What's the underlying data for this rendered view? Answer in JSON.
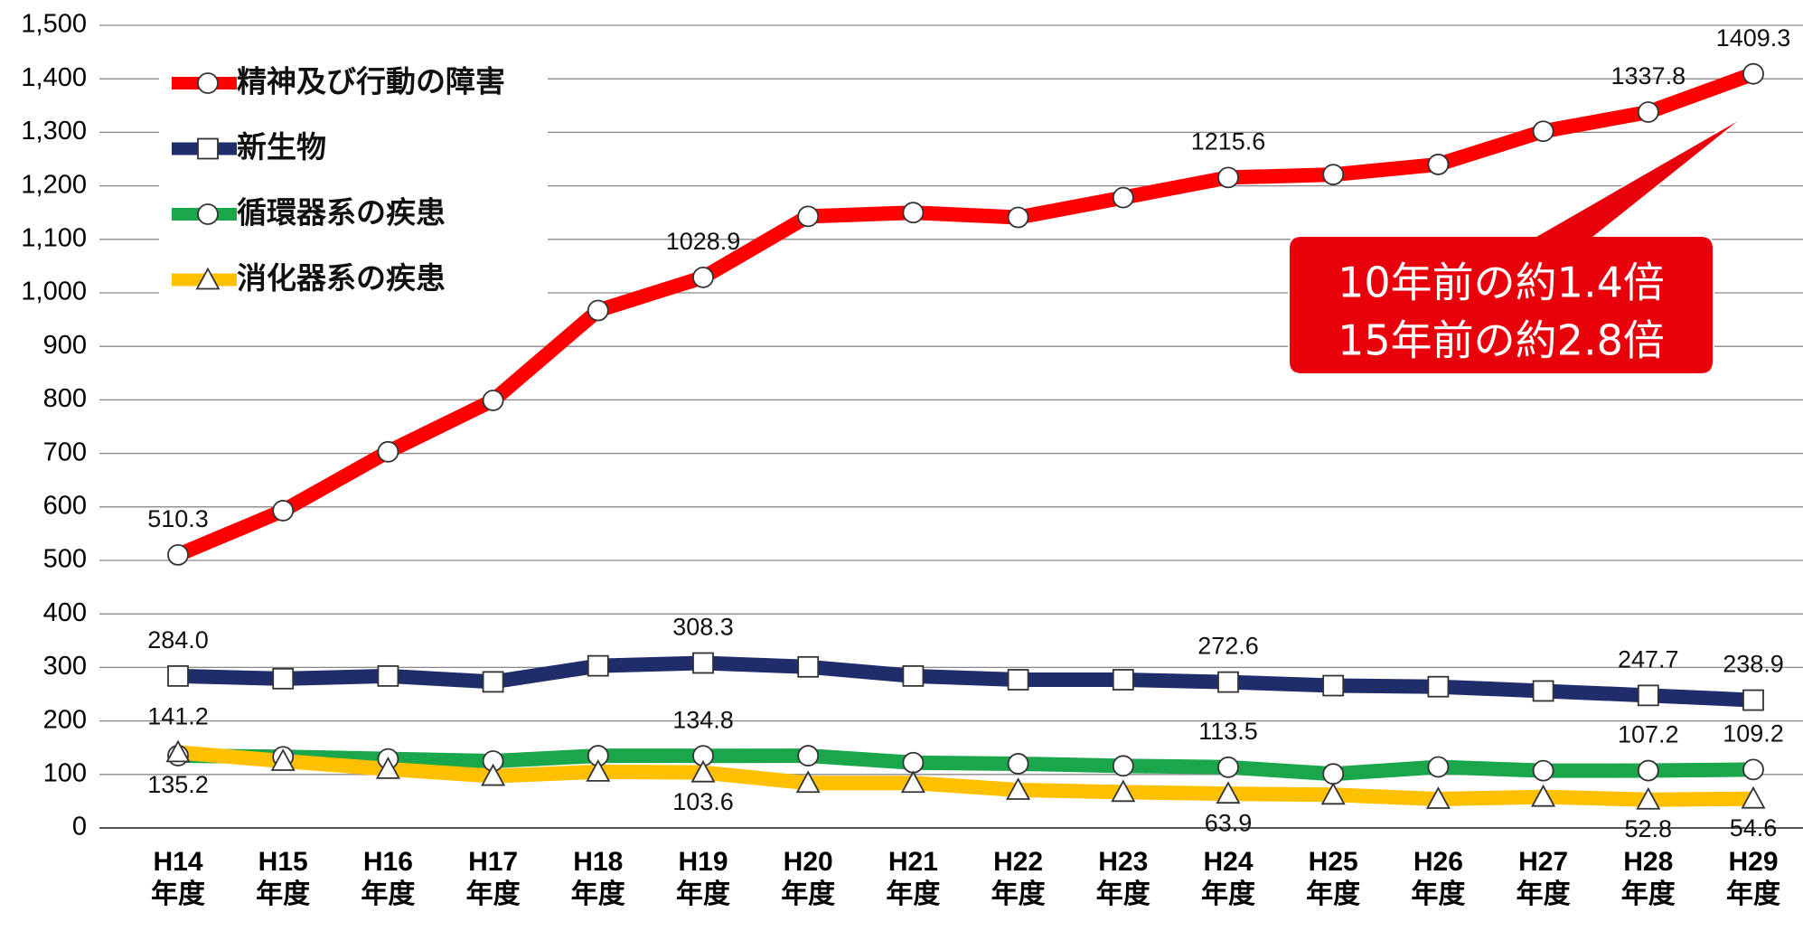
{
  "chart_data": {
    "type": "line",
    "categories": [
      "H14\n年度",
      "H15\n年度",
      "H16\n年度",
      "H17\n年度",
      "H18\n年度",
      "H19\n年度",
      "H20\n年度",
      "H21\n年度",
      "H22\n年度",
      "H23\n年度",
      "H24\n年度",
      "H25\n年度",
      "H26\n年度",
      "H27\n年度",
      "H28\n年度",
      "H29\n年度"
    ],
    "series": [
      {
        "name": "精神及び行動の障害",
        "color": "#ff0000",
        "marker": "circle",
        "values": [
          510.3,
          593,
          703,
          799,
          967,
          1028.9,
          1143,
          1150,
          1141,
          1178,
          1215.6,
          1221,
          1240,
          1302,
          1337.8,
          1409.3
        ],
        "value_labels": [
          "510.3",
          null,
          null,
          null,
          null,
          "1028.9",
          null,
          null,
          null,
          null,
          "1215.6",
          null,
          null,
          null,
          "1337.8",
          "1409.3"
        ]
      },
      {
        "name": "新生物",
        "color": "#1f2d6b",
        "marker": "square",
        "values": [
          284.0,
          279,
          284,
          273,
          303,
          308.3,
          301,
          284,
          277,
          277,
          272.6,
          266,
          264,
          256,
          247.7,
          238.9
        ],
        "value_labels": [
          "284.0",
          null,
          null,
          null,
          null,
          "308.3",
          null,
          null,
          null,
          null,
          "272.6",
          null,
          null,
          null,
          "247.7",
          "238.9"
        ]
      },
      {
        "name": "循環器系の疾患",
        "color": "#1aa64a",
        "marker": "circle",
        "values": [
          135.2,
          133,
          129,
          125,
          135,
          134.8,
          135,
          122,
          120,
          116,
          113.5,
          101,
          114,
          107,
          107.2,
          109.2
        ],
        "value_labels": [
          "135.2",
          null,
          null,
          null,
          null,
          "134.8",
          null,
          null,
          null,
          null,
          "113.5",
          null,
          null,
          null,
          "107.2",
          "109.2"
        ]
      },
      {
        "name": "消化器系の疾患",
        "color": "#ffc000",
        "marker": "triangle",
        "values": [
          141.2,
          125,
          110,
          97,
          105,
          103.6,
          84,
          84,
          71,
          67,
          63.9,
          62,
          54,
          58,
          52.8,
          54.6
        ],
        "value_labels": [
          "141.2",
          null,
          null,
          null,
          null,
          "103.6",
          null,
          null,
          null,
          null,
          "63.9",
          null,
          null,
          null,
          "52.8",
          "54.6"
        ]
      }
    ],
    "ylim": [
      0,
      1500
    ],
    "yticks": [
      0,
      100,
      200,
      300,
      400,
      500,
      600,
      700,
      800,
      900,
      {
        "value": 1000,
        "label": "1,000"
      },
      {
        "value": 1100,
        "label": "1,100"
      },
      {
        "value": 1200,
        "label": "1,200"
      },
      {
        "value": 1300,
        "label": "1,300"
      },
      {
        "value": 1400,
        "label": "1,400"
      },
      {
        "value": 1500,
        "label": "1,500"
      }
    ],
    "grid": true,
    "legend": "top-left",
    "annotations": [
      "10年前の約1.4倍",
      "15年前の約2.8倍"
    ]
  }
}
